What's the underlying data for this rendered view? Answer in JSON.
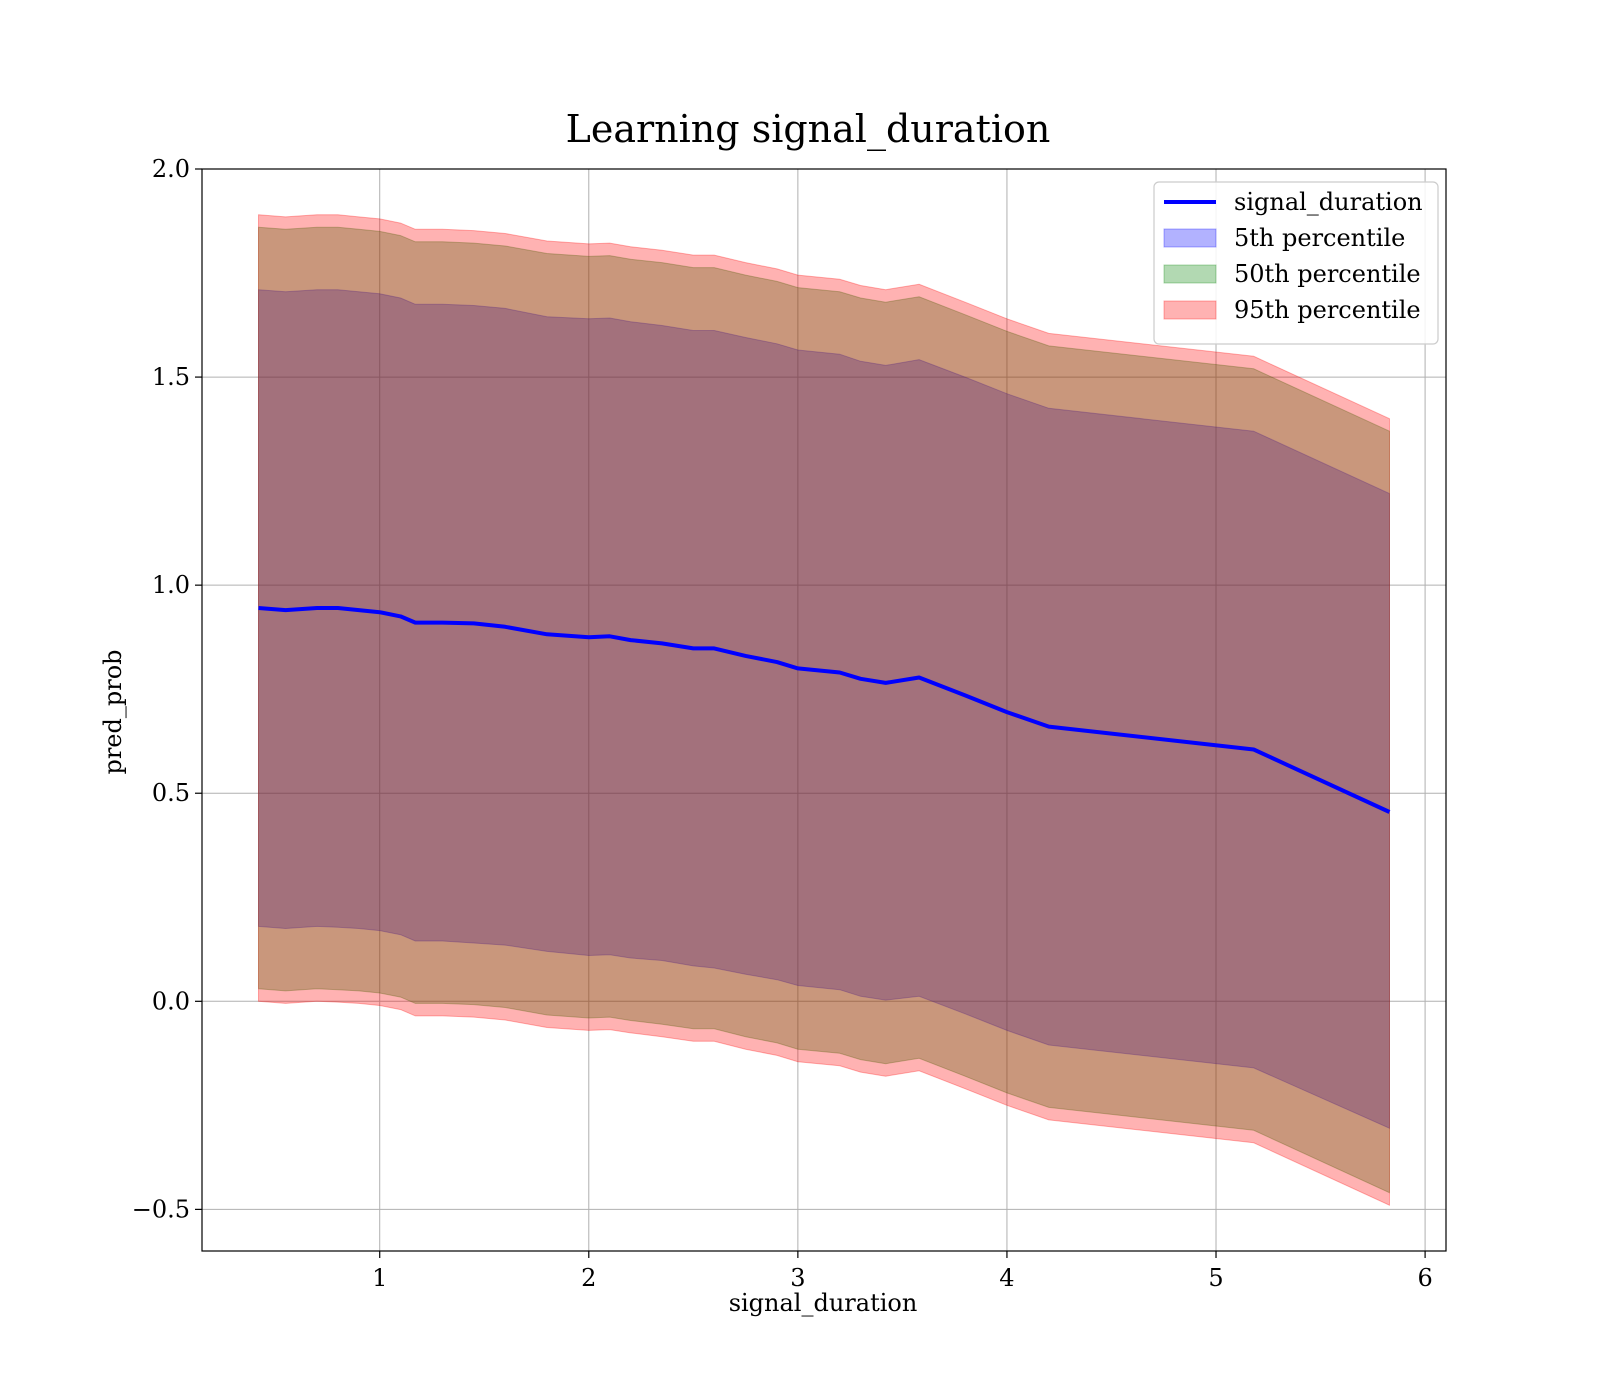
{
  "chart_data": {
    "type": "area",
    "title": "Learning signal_duration",
    "xlabel": "signal_duration",
    "ylabel": "pred_prob",
    "xlim": [
      0.15,
      6.1
    ],
    "ylim": [
      -0.6,
      2.0
    ],
    "xticks": [
      1,
      2,
      3,
      4,
      5,
      6
    ],
    "xtick_labels": [
      "1",
      "2",
      "3",
      "4",
      "5",
      "6"
    ],
    "yticks": [
      -0.5,
      0.0,
      0.5,
      1.0,
      1.5,
      2.0
    ],
    "ytick_labels": [
      "−0.5",
      "0.0",
      "0.5",
      "1.0",
      "1.5",
      "2.0"
    ],
    "grid": true,
    "legend_position": "top-right",
    "x": [
      0.42,
      0.55,
      0.7,
      0.8,
      0.9,
      1.0,
      1.1,
      1.17,
      1.3,
      1.45,
      1.6,
      1.8,
      2.0,
      2.1,
      2.2,
      2.35,
      2.5,
      2.6,
      2.75,
      2.9,
      3.0,
      3.2,
      3.3,
      3.42,
      3.58,
      3.8,
      4.0,
      4.2,
      5.18,
      5.83
    ],
    "series": [
      {
        "name": "signal_duration",
        "kind": "line",
        "color": "#0000ff",
        "values": [
          0.945,
          0.94,
          0.945,
          0.945,
          0.94,
          0.935,
          0.925,
          0.91,
          0.91,
          0.908,
          0.9,
          0.882,
          0.875,
          0.877,
          0.868,
          0.86,
          0.848,
          0.848,
          0.83,
          0.815,
          0.8,
          0.79,
          0.775,
          0.765,
          0.778,
          0.735,
          0.695,
          0.66,
          0.605,
          0.455
        ]
      },
      {
        "name": "5th percentile",
        "kind": "band",
        "color": "#0000ff",
        "lower": [
          0.18,
          0.175,
          0.18,
          0.178,
          0.175,
          0.17,
          0.16,
          0.145,
          0.145,
          0.14,
          0.135,
          0.12,
          0.11,
          0.112,
          0.104,
          0.098,
          0.085,
          0.08,
          0.065,
          0.052,
          0.038,
          0.028,
          0.012,
          0.003,
          0.012,
          -0.03,
          -0.07,
          -0.105,
          -0.16,
          -0.305
        ],
        "upper": [
          1.71,
          1.705,
          1.71,
          1.71,
          1.705,
          1.7,
          1.69,
          1.675,
          1.675,
          1.672,
          1.665,
          1.645,
          1.64,
          1.642,
          1.633,
          1.624,
          1.612,
          1.612,
          1.595,
          1.58,
          1.565,
          1.555,
          1.538,
          1.528,
          1.542,
          1.5,
          1.46,
          1.425,
          1.37,
          1.22
        ]
      },
      {
        "name": "50th percentile",
        "kind": "band",
        "color": "#008000",
        "lower": [
          0.03,
          0.025,
          0.03,
          0.028,
          0.025,
          0.02,
          0.01,
          -0.005,
          -0.005,
          -0.008,
          -0.015,
          -0.033,
          -0.04,
          -0.038,
          -0.046,
          -0.055,
          -0.066,
          -0.066,
          -0.085,
          -0.1,
          -0.115,
          -0.125,
          -0.14,
          -0.15,
          -0.137,
          -0.18,
          -0.22,
          -0.255,
          -0.31,
          -0.46
        ],
        "upper": [
          1.86,
          1.855,
          1.86,
          1.86,
          1.855,
          1.85,
          1.84,
          1.825,
          1.825,
          1.822,
          1.815,
          1.797,
          1.79,
          1.792,
          1.783,
          1.775,
          1.763,
          1.763,
          1.745,
          1.73,
          1.715,
          1.705,
          1.69,
          1.68,
          1.693,
          1.65,
          1.61,
          1.575,
          1.52,
          1.37
        ]
      },
      {
        "name": "95th percentile",
        "kind": "band",
        "color": "#ff0000",
        "lower": [
          0.0,
          -0.005,
          0.0,
          -0.002,
          -0.005,
          -0.01,
          -0.02,
          -0.035,
          -0.035,
          -0.038,
          -0.045,
          -0.063,
          -0.07,
          -0.068,
          -0.076,
          -0.085,
          -0.096,
          -0.096,
          -0.115,
          -0.13,
          -0.145,
          -0.155,
          -0.17,
          -0.18,
          -0.167,
          -0.21,
          -0.25,
          -0.285,
          -0.34,
          -0.49
        ],
        "upper": [
          1.89,
          1.885,
          1.89,
          1.89,
          1.885,
          1.88,
          1.87,
          1.855,
          1.855,
          1.852,
          1.845,
          1.827,
          1.82,
          1.822,
          1.813,
          1.805,
          1.793,
          1.793,
          1.775,
          1.76,
          1.745,
          1.735,
          1.72,
          1.71,
          1.723,
          1.68,
          1.64,
          1.605,
          1.55,
          1.4
        ]
      }
    ]
  }
}
